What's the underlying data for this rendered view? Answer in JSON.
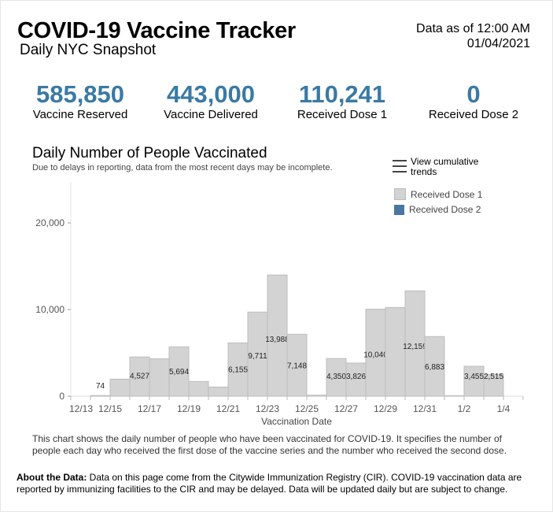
{
  "header": {
    "title": "COVID-19 Vaccine Tracker",
    "subtitle": "Daily NYC Snapshot",
    "as_of_line1": "Data as of 12:00 AM",
    "as_of_line2": "01/04/2021"
  },
  "stats": [
    {
      "value": "585,850",
      "label": "Vaccine Reserved"
    },
    {
      "value": "443,000",
      "label": "Vaccine Delivered"
    },
    {
      "value": "110,241",
      "label": "Received Dose 1"
    },
    {
      "value": "0",
      "label": "Received Dose 2"
    }
  ],
  "controls": {
    "cumulative_label": "View cumulative trends",
    "cumulative_icon": "hamburger-icon"
  },
  "colors": {
    "accent": "#3a7aa3",
    "dose1": "#d3d3d3",
    "dose2": "#4a77a0"
  },
  "chart_data": {
    "type": "bar",
    "title": "Daily Number of People Vaccinated",
    "subtitle": "Due to delays in reporting, data from the most recent days may be incomplete.",
    "xlabel": "Vaccination Date",
    "ylabel": "",
    "ylim": [
      0,
      23000
    ],
    "yticks": [
      0,
      10000,
      20000
    ],
    "ytick_labels": [
      "0",
      "10,000",
      "20,000"
    ],
    "x_tick_labels": [
      "12/13",
      "12/15",
      "12/17",
      "12/19",
      "12/21",
      "12/23",
      "12/25",
      "12/27",
      "12/29",
      "12/31",
      "1/2",
      "1/4"
    ],
    "legend": {
      "placement": "top-right",
      "entries": [
        "Received Dose 1",
        "Received Dose 2"
      ]
    },
    "categories": [
      "12/13",
      "12/14",
      "12/15",
      "12/16",
      "12/17",
      "12/18",
      "12/19",
      "12/20",
      "12/21",
      "12/22",
      "12/23",
      "12/24",
      "12/25",
      "12/26",
      "12/27",
      "12/28",
      "12/29",
      "12/30",
      "12/31",
      "1/1",
      "1/2",
      "1/3"
    ],
    "series": [
      {
        "name": "Received Dose 1",
        "values": [
          0,
          74,
          1970,
          4527,
          4330,
          5694,
          1700,
          1060,
          6155,
          9711,
          13988,
          7148,
          120,
          4350,
          3826,
          10040,
          10240,
          12159,
          6883,
          60,
          3455,
          2515
        ],
        "labels": [
          "",
          "74",
          "",
          "4,527",
          "",
          "5,694",
          "",
          "",
          "6,155",
          "9,711",
          "13,988",
          "7,148",
          "",
          "4,350",
          "3,826",
          "10,040",
          "",
          "12,159",
          "6,883",
          "",
          "3,455",
          "2,515"
        ]
      },
      {
        "name": "Received Dose 2",
        "values": [
          0,
          0,
          0,
          0,
          0,
          0,
          0,
          0,
          0,
          0,
          0,
          0,
          0,
          0,
          0,
          0,
          0,
          0,
          0,
          0,
          0,
          0
        ]
      }
    ],
    "grid": false
  },
  "footer": {
    "description": "This chart shows the daily number of people who have been vaccinated for COVID-19. It specifies the number of people each day who received the first dose of the vaccine series and the number who received the second dose.",
    "about_label": "About the Data:",
    "about_text": " Data on this page come from the Citywide Immunization Registry (CIR). COVID-19 vaccination data are reported by immunizing facilities to the CIR and may be delayed. Data will be updated daily but are subject to change."
  }
}
